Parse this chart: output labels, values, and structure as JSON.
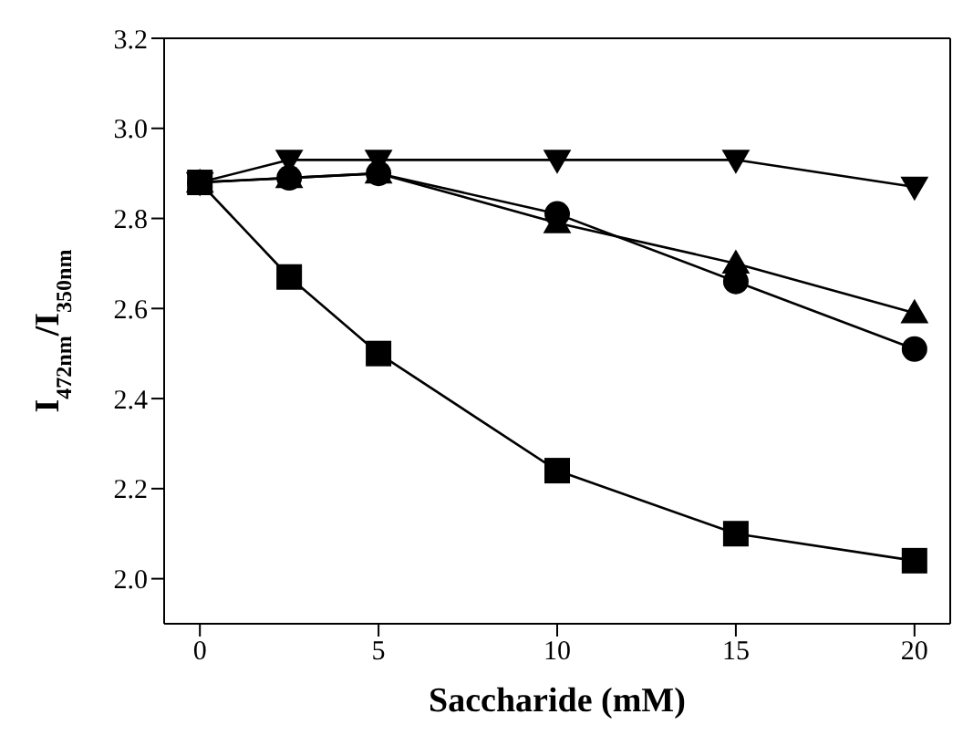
{
  "chart_data": {
    "type": "line",
    "xlabel": "Saccharide (mM)",
    "ylabel": "I$_{472nm}$/I$_{350nm}$",
    "x": [
      0,
      2.5,
      5,
      10,
      15,
      20
    ],
    "series": [
      {
        "color": "#000000",
        "marker": "square",
        "values": [
          2.88,
          2.67,
          2.5,
          2.24,
          2.1,
          2.04
        ]
      },
      {
        "color": "#000000",
        "marker": "circle",
        "values": [
          2.88,
          2.89,
          2.9,
          2.81,
          2.66,
          2.51
        ]
      },
      {
        "color": "#000000",
        "marker": "triangle",
        "values": [
          2.88,
          2.89,
          2.9,
          2.79,
          2.7,
          2.59
        ]
      },
      {
        "color": "#000000",
        "marker": "triangle-down",
        "values": [
          2.88,
          2.93,
          2.93,
          2.93,
          2.93,
          2.87
        ]
      }
    ],
    "xlim": [
      -1,
      21
    ],
    "xticks": [
      0,
      5,
      10,
      15,
      20
    ],
    "ylim": [
      1.9,
      3.2
    ],
    "yticks": [
      {
        "value": 2.0,
        "label": "2.0"
      },
      {
        "value": 2.2,
        "label": "2.2"
      },
      {
        "value": 2.4,
        "label": "2.4"
      },
      {
        "value": 2.6,
        "label": "2.6"
      },
      {
        "value": 2.8,
        "label": "2.8"
      },
      {
        "value": 3.0,
        "label": "3.0"
      },
      {
        "value": 3.2,
        "label": "3.2"
      }
    ],
    "grid": false,
    "legend": false,
    "line_style": "solid"
  }
}
